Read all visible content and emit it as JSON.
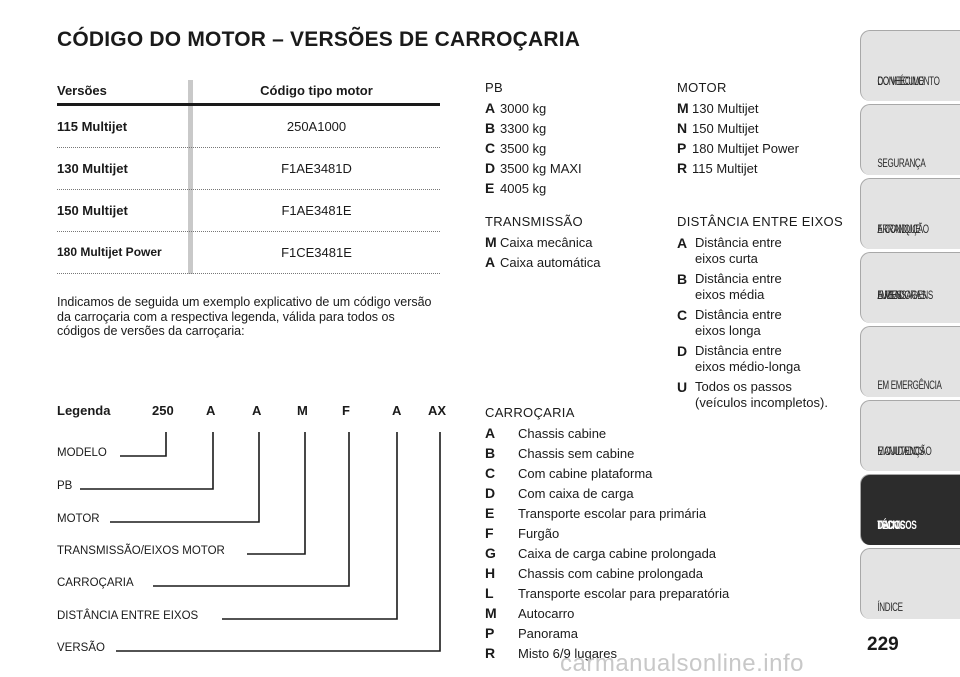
{
  "title": "CÓDIGO DO MOTOR – VERSÕES DE CARROÇARIA",
  "table": {
    "headers": [
      "Versões",
      "Código tipo motor"
    ],
    "rows": [
      [
        "115 Multijet",
        "250A1000"
      ],
      [
        "130 Multijet",
        "F1AE3481D"
      ],
      [
        "150 Multijet",
        "F1AE3481E"
      ],
      [
        "180 Multijet Power",
        "F1CE3481E"
      ]
    ]
  },
  "intro": "Indicamos de seguida um exemplo explicativo de um código versão da carroçaria com a respectiva legenda, válida para todos os códigos de versões da carroçaria:",
  "legend": {
    "label": "Legenda",
    "codes": [
      "250",
      "A",
      "A",
      "M",
      "F",
      "A",
      "AX"
    ],
    "items": [
      "MODELO",
      "PB",
      "MOTOR",
      "TRANSMISSÃO/EIXOS MOTOR",
      "CARROÇARIA",
      "DISTÂNCIA ENTRE EIXOS",
      "VERSÃO"
    ]
  },
  "pb": {
    "title": "PB",
    "items": [
      [
        "A",
        "3000 kg"
      ],
      [
        "B",
        "3300 kg"
      ],
      [
        "C",
        "3500 kg"
      ],
      [
        "D",
        "3500 kg MAXI"
      ],
      [
        "E",
        "4005 kg"
      ]
    ]
  },
  "motor": {
    "title": "MOTOR",
    "items": [
      [
        "M",
        "130 Multijet"
      ],
      [
        "N",
        "150 Multijet"
      ],
      [
        "P",
        "180 Multijet Power"
      ],
      [
        "R",
        "115 Multijet"
      ]
    ]
  },
  "transmissao": {
    "title": "TRANSMISSÃO",
    "items": [
      [
        "M",
        "Caixa mecânica"
      ],
      [
        "A",
        "Caixa automática"
      ]
    ]
  },
  "distancia": {
    "title": "DISTÂNCIA ENTRE EIXOS",
    "items": [
      [
        "A",
        "Distância entre",
        "eixos curta"
      ],
      [
        "B",
        "Distância entre",
        "eixos média"
      ],
      [
        "C",
        "Distância entre",
        "eixos longa"
      ],
      [
        "D",
        "Distância entre",
        "eixos médio-longa"
      ],
      [
        "U",
        "Todos os passos",
        "(veículos incompletos)."
      ]
    ]
  },
  "carrocaria": {
    "title": "CARROÇARIA",
    "items": [
      [
        "A",
        "Chassis cabine"
      ],
      [
        "B",
        "Chassis sem cabine"
      ],
      [
        "C",
        "Com cabine plataforma"
      ],
      [
        "D",
        "Com caixa de carga"
      ],
      [
        "E",
        "Transporte escolar para primária"
      ],
      [
        "F",
        "Furgão"
      ],
      [
        "G",
        "Caixa de carga cabine prolongada"
      ],
      [
        "H",
        "Chassis com cabine prolongada"
      ],
      [
        "L",
        "Transporte escolar para preparatória"
      ],
      [
        "M",
        "Autocarro"
      ],
      [
        "P",
        "Panorama"
      ],
      [
        "R",
        "Misto 6/9 lugares"
      ]
    ]
  },
  "sidebar": {
    "tabs": [
      {
        "lines": [
          "CONHECIMENTO",
          "DO VEÍCULO"
        ],
        "active": false
      },
      {
        "lines": [
          "SEGURANÇA"
        ],
        "active": false
      },
      {
        "lines": [
          "ARRANQUE",
          "E CONDUÇÃO"
        ],
        "active": false
      },
      {
        "lines": [
          "LUZES",
          "AVISADORAS",
          "E MENSAGENS"
        ],
        "active": false
      },
      {
        "lines": [
          "EM EMERGÊNCIA"
        ],
        "active": false
      },
      {
        "lines": [
          "MANUTENÇÃO",
          "E CUIDADOS"
        ],
        "active": false
      },
      {
        "lines": [
          "DADOS",
          "TÉCNICOS"
        ],
        "active": true
      },
      {
        "lines": [
          "ÍNDICE"
        ],
        "active": false
      }
    ]
  },
  "page_number": "229",
  "watermark": "carmanualsonline.info"
}
